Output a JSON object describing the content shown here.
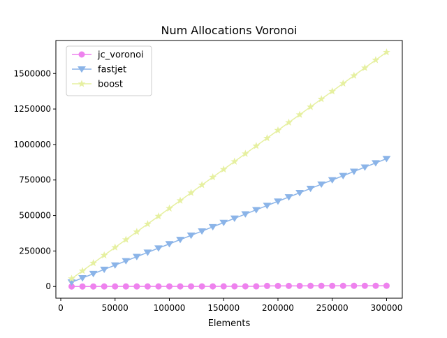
{
  "chart_data": {
    "type": "line",
    "title": "Num Allocations Voronoi",
    "xlabel": "Elements",
    "ylabel": "",
    "xlim": [
      -4500,
      314500
    ],
    "ylim": [
      -82500,
      1732500
    ],
    "xticks": [
      0,
      50000,
      100000,
      150000,
      200000,
      250000,
      300000
    ],
    "yticks": [
      0,
      250000,
      500000,
      750000,
      1000000,
      1250000,
      1500000
    ],
    "grid": false,
    "legend_position": "top-left",
    "x": [
      10000,
      20000,
      30000,
      40000,
      50000,
      60000,
      70000,
      80000,
      90000,
      100000,
      110000,
      120000,
      130000,
      140000,
      150000,
      160000,
      170000,
      180000,
      190000,
      200000,
      210000,
      220000,
      230000,
      240000,
      250000,
      260000,
      270000,
      280000,
      290000,
      300000
    ],
    "series": [
      {
        "name": "jc_voronoi",
        "color": "#ee82ee",
        "marker": "circle",
        "values": [
          60,
          110,
          160,
          220,
          270,
          330,
          380,
          440,
          490,
          550,
          600,
          650,
          710,
          760,
          820,
          870,
          930,
          980,
          4000,
          4100,
          4200,
          4300,
          4500,
          4600,
          4700,
          4800,
          4900,
          5000,
          5100,
          5200
        ]
      },
      {
        "name": "fastjet",
        "color": "#8bb4e8",
        "marker": "triangle-down",
        "values": [
          30000,
          60000,
          90000,
          120000,
          150000,
          180000,
          210000,
          240000,
          270000,
          300000,
          330000,
          360000,
          390000,
          420000,
          450000,
          480000,
          510000,
          540000,
          570000,
          600000,
          630000,
          660000,
          690000,
          720000,
          750000,
          780000,
          810000,
          840000,
          870000,
          900000
        ]
      },
      {
        "name": "boost",
        "color": "#e6f0a0",
        "marker": "star",
        "values": [
          55000,
          110000,
          165000,
          220000,
          275000,
          330000,
          385000,
          440000,
          495000,
          550000,
          605000,
          660000,
          715000,
          770000,
          825000,
          880000,
          935000,
          990000,
          1045000,
          1100000,
          1155000,
          1210000,
          1265000,
          1320000,
          1375000,
          1430000,
          1485000,
          1540000,
          1595000,
          1650000
        ]
      }
    ]
  }
}
